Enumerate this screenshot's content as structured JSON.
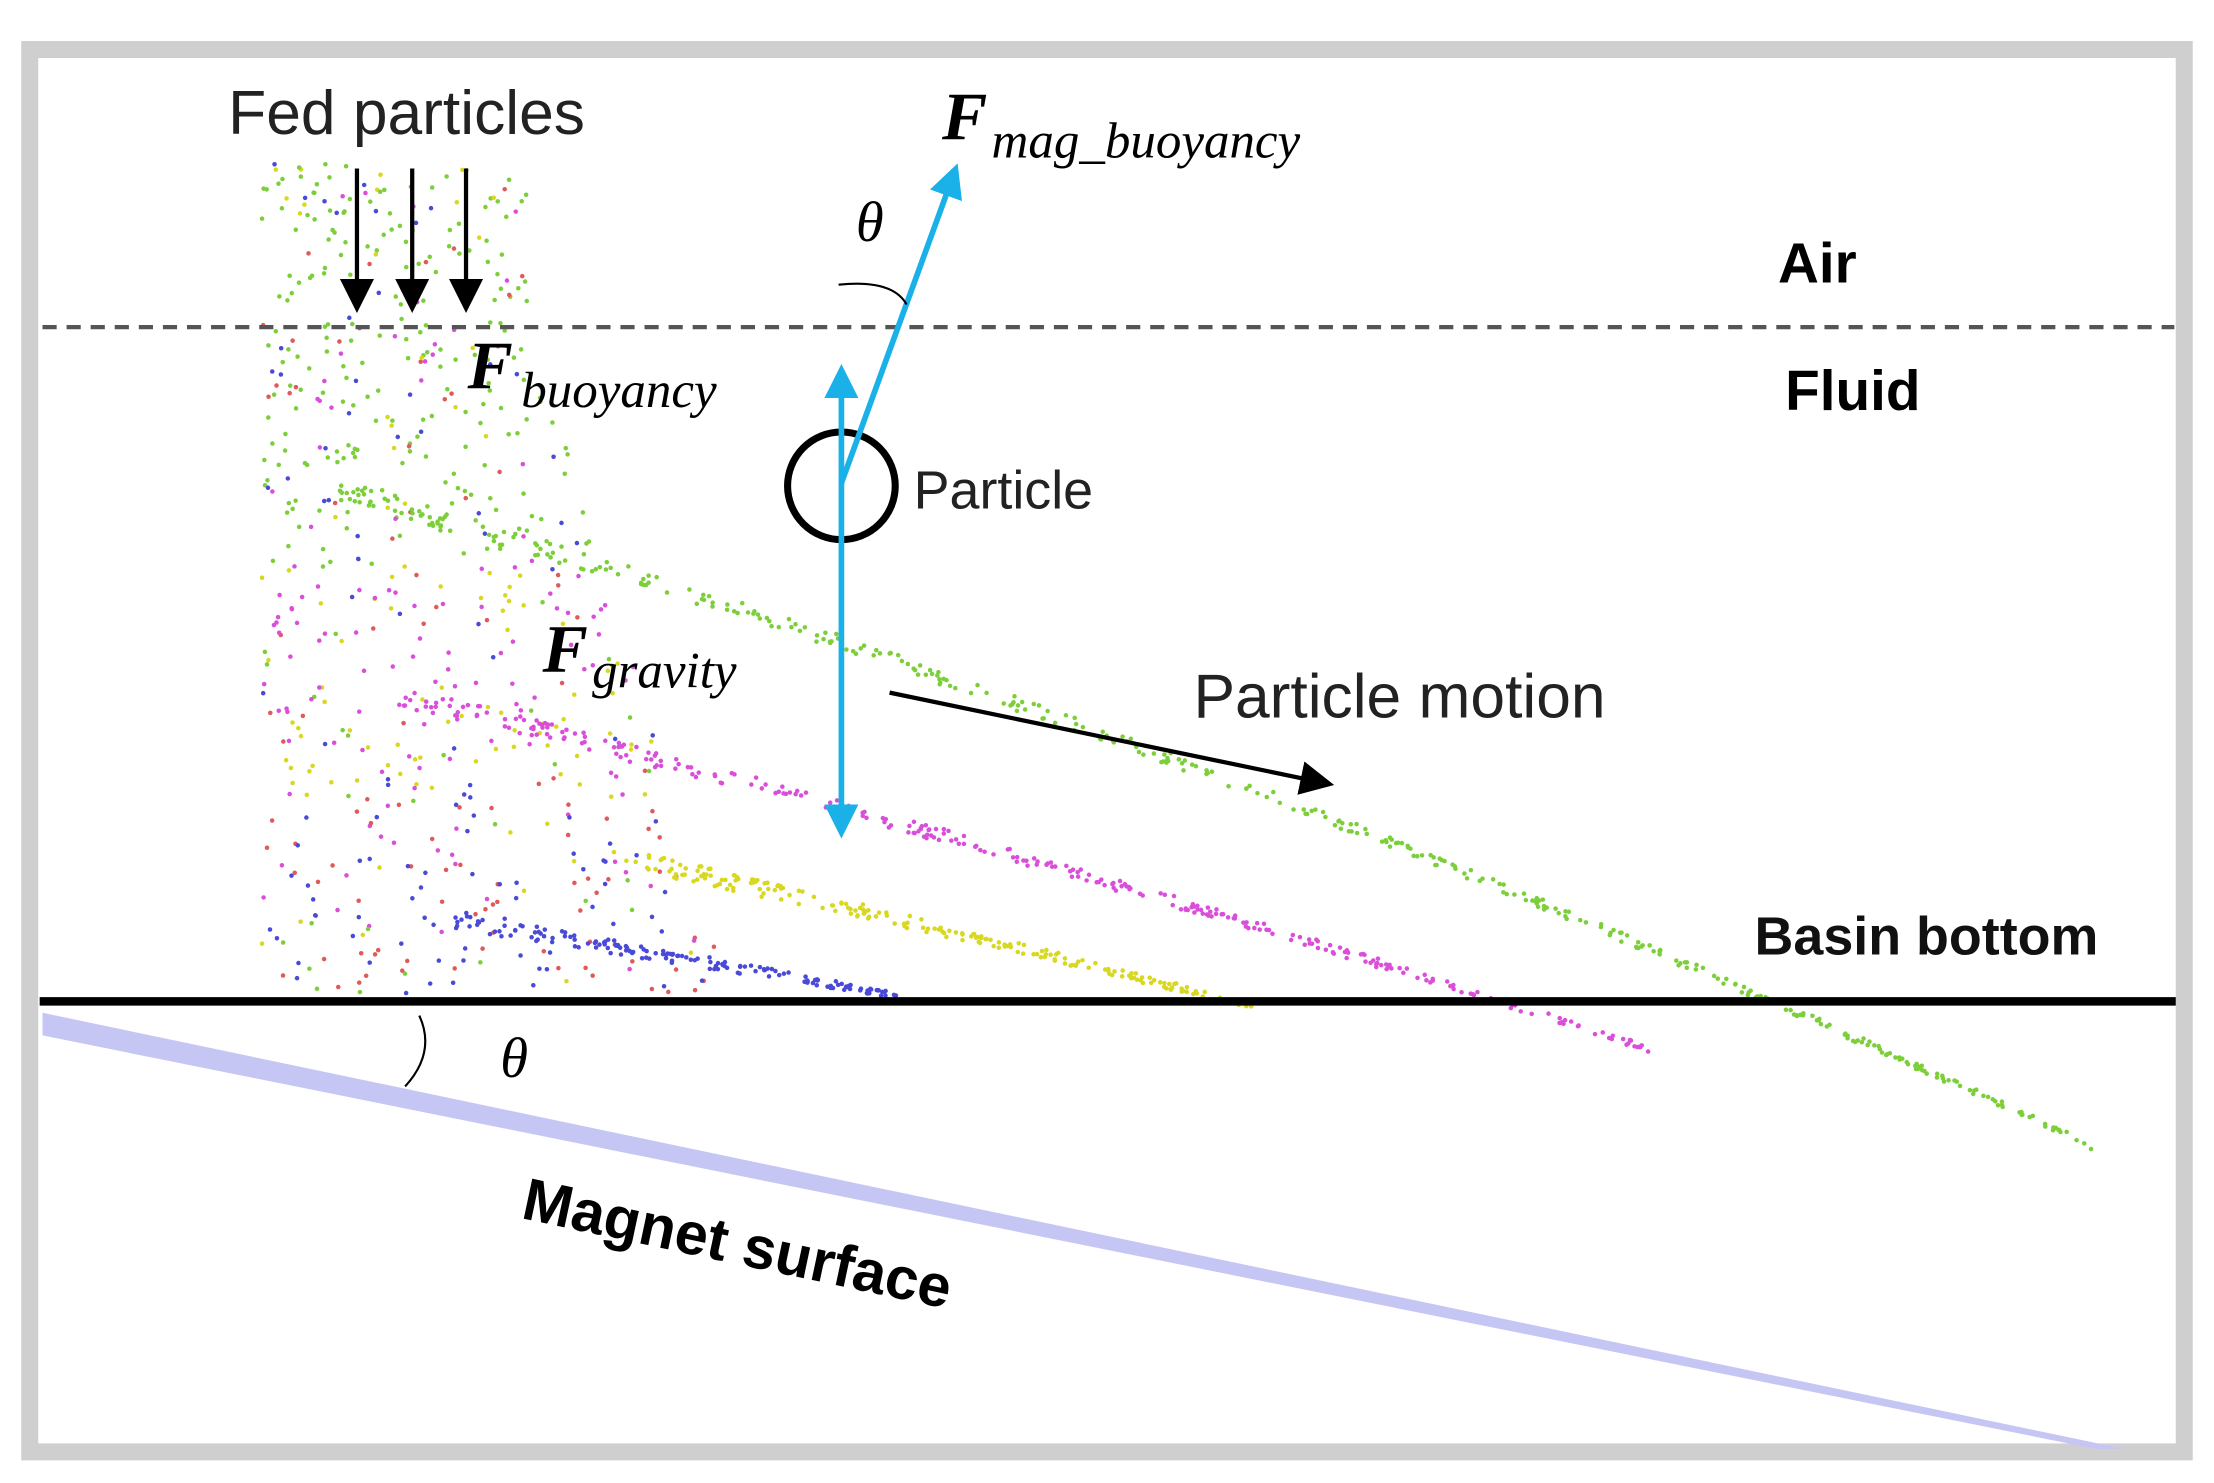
{
  "labels": {
    "fed_particles": "Fed particles",
    "air": "Air",
    "fluid": "Fluid",
    "particle": "Particle",
    "particle_motion": "Particle motion",
    "basin_bottom": "Basin bottom",
    "magnet_surface": "Magnet surface",
    "theta_top": "θ",
    "theta_bottom": "θ"
  },
  "forces": [
    {
      "symbol": "F",
      "subscript": "mag_buoyancy"
    },
    {
      "symbol": "F",
      "subscript": "buoyancy"
    },
    {
      "symbol": "F",
      "subscript": "gravity"
    }
  ]
}
